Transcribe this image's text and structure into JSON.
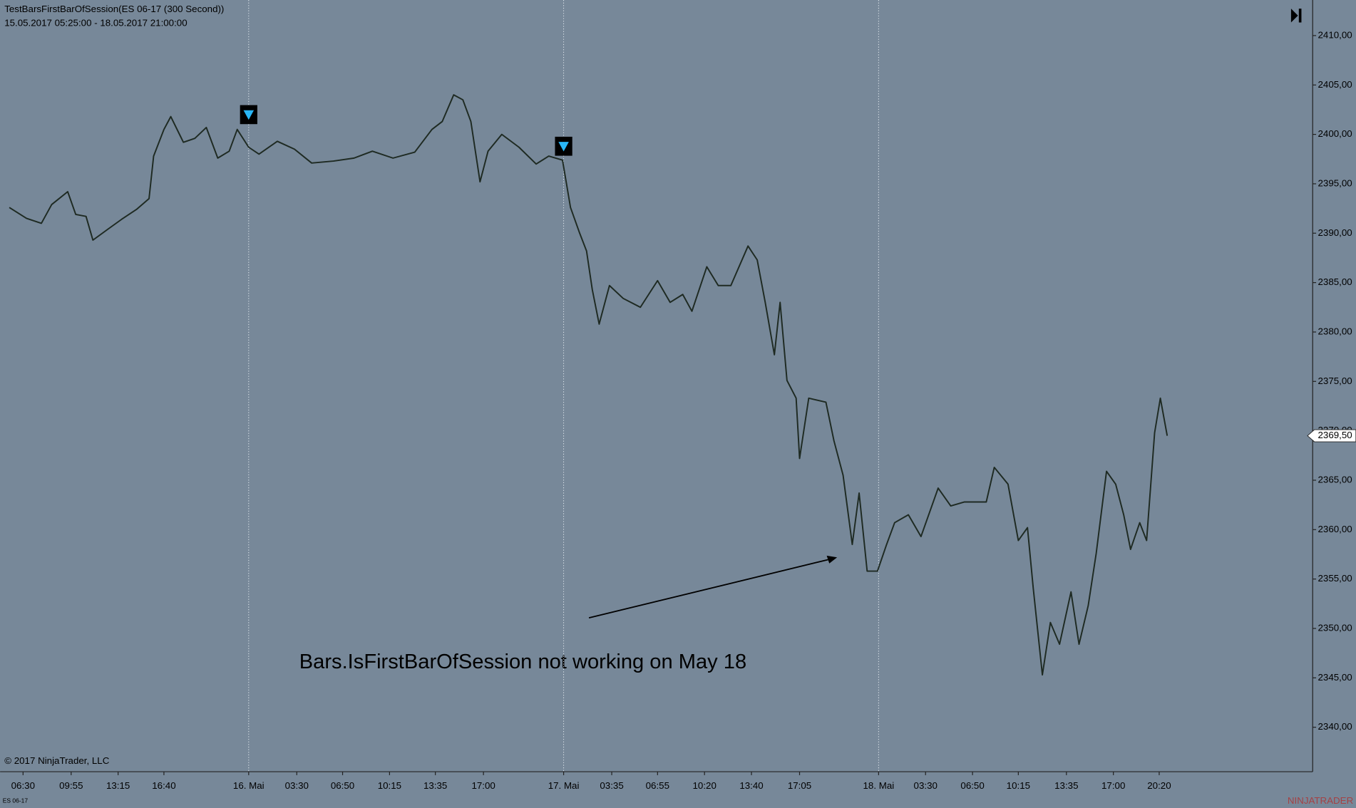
{
  "chart_data": {
    "type": "line",
    "title": "TestBarsFirstBarOfSession(ES 06-17 (300 Second))",
    "subtitle": "15.05.2017 05:25:00 - 18.05.2017 21:00:00",
    "annotation": "Bars.IsFirstBarOfSession not working on May 18",
    "copyright": "© 2017 NinjaTrader, LLC",
    "instrument": "ES 06-17",
    "logo": "NINJATRADER",
    "xlim": [
      0,
      1140
    ],
    "ylim": [
      2335.5,
      2413.6
    ],
    "xticks": [
      {
        "value": 14,
        "label": "06:30"
      },
      {
        "value": 56,
        "label": "09:55"
      },
      {
        "value": 97,
        "label": "13:15"
      },
      {
        "value": 137,
        "label": "16:40"
      },
      {
        "value": 211,
        "label": "16. Mai"
      },
      {
        "value": 253,
        "label": "03:30"
      },
      {
        "value": 293,
        "label": "06:50"
      },
      {
        "value": 334,
        "label": "10:15"
      },
      {
        "value": 374,
        "label": "13:35"
      },
      {
        "value": 416,
        "label": "17:00"
      },
      {
        "value": 486,
        "label": "17. Mai"
      },
      {
        "value": 528,
        "label": "03:35"
      },
      {
        "value": 568,
        "label": "06:55"
      },
      {
        "value": 609,
        "label": "10:20"
      },
      {
        "value": 650,
        "label": "13:40"
      },
      {
        "value": 692,
        "label": "17:05"
      },
      {
        "value": 761,
        "label": "18. Mai"
      },
      {
        "value": 802,
        "label": "03:30"
      },
      {
        "value": 843,
        "label": "06:50"
      },
      {
        "value": 883,
        "label": "10:15"
      },
      {
        "value": 925,
        "label": "13:35"
      },
      {
        "value": 966,
        "label": "17:00"
      },
      {
        "value": 1006,
        "label": "20:20"
      }
    ],
    "yticks": [
      {
        "value": 2340,
        "label": "2340,00"
      },
      {
        "value": 2345,
        "label": "2345,00"
      },
      {
        "value": 2350,
        "label": "2350,00"
      },
      {
        "value": 2355,
        "label": "2355,00"
      },
      {
        "value": 2360,
        "label": "2360,00"
      },
      {
        "value": 2365,
        "label": "2365,00"
      },
      {
        "value": 2370,
        "label": "2370,00"
      },
      {
        "value": 2375,
        "label": "2375,00"
      },
      {
        "value": 2380,
        "label": "2380,00"
      },
      {
        "value": 2385,
        "label": "2385,00"
      },
      {
        "value": 2390,
        "label": "2390,00"
      },
      {
        "value": 2395,
        "label": "2395,00"
      },
      {
        "value": 2400,
        "label": "2400,00"
      },
      {
        "value": 2405,
        "label": "2405,00"
      },
      {
        "value": 2410,
        "label": "2410,00"
      }
    ],
    "session_breaks": [
      211,
      486,
      761
    ],
    "markers": {
      "x": [
        211,
        486
      ],
      "y": [
        2402.0,
        2398.8
      ],
      "color": "#29b6f6"
    },
    "last_price": {
      "value": 2369.5,
      "label": "2369,50"
    },
    "x": [
      2,
      17,
      30,
      39,
      53,
      60,
      69,
      75,
      88,
      100,
      113,
      124,
      128,
      137,
      143,
      154,
      164,
      174,
      184,
      194,
      201,
      211,
      220,
      236,
      251,
      266,
      285,
      303,
      319,
      337,
      356,
      371,
      380,
      390,
      398,
      405,
      413,
      420,
      432,
      447,
      462,
      473,
      485,
      492,
      500,
      506,
      511,
      517,
      526,
      538,
      553,
      568,
      579,
      590,
      598,
      611,
      621,
      632,
      647,
      655,
      662,
      670,
      675,
      681,
      689,
      692,
      700,
      715,
      722,
      730,
      738,
      744,
      751,
      760,
      768,
      775,
      787,
      798,
      813,
      824,
      836,
      855,
      862,
      874,
      883,
      891,
      896,
      904,
      911,
      919,
      929,
      936,
      944,
      951,
      960,
      968,
      975,
      981,
      989,
      995,
      1002,
      1007,
      1013
    ],
    "series": [
      {
        "name": "ES 06-17",
        "color": "#1e2a22",
        "values": [
          2392.6,
          2391.5,
          2391.0,
          2392.9,
          2394.2,
          2391.9,
          2391.7,
          2389.3,
          2390.4,
          2391.4,
          2392.4,
          2393.5,
          2397.8,
          2400.5,
          2401.8,
          2399.2,
          2399.6,
          2400.7,
          2397.6,
          2398.3,
          2400.5,
          2398.7,
          2398.0,
          2399.3,
          2398.5,
          2397.1,
          2397.3,
          2397.6,
          2398.3,
          2397.6,
          2398.2,
          2400.5,
          2401.3,
          2404.0,
          2403.5,
          2401.3,
          2395.2,
          2398.3,
          2400.0,
          2398.7,
          2397.0,
          2397.8,
          2397.4,
          2392.6,
          2390.0,
          2388.2,
          2384.3,
          2380.8,
          2384.7,
          2383.4,
          2382.5,
          2385.2,
          2383.0,
          2383.8,
          2382.1,
          2386.6,
          2384.7,
          2384.7,
          2388.7,
          2387.3,
          2383.0,
          2377.7,
          2383.0,
          2375.1,
          2373.3,
          2367.2,
          2373.3,
          2372.9,
          2369.0,
          2365.5,
          2358.5,
          2363.7,
          2355.8,
          2355.8,
          2358.5,
          2360.7,
          2361.5,
          2359.3,
          2364.2,
          2362.4,
          2362.8,
          2362.8,
          2366.3,
          2364.6,
          2358.9,
          2360.2,
          2354.1,
          2345.3,
          2350.6,
          2348.4,
          2353.7,
          2348.4,
          2352.3,
          2357.6,
          2365.9,
          2364.6,
          2361.5,
          2358.0,
          2360.7,
          2358.9,
          2369.8,
          2373.3,
          2369.5
        ]
      }
    ]
  }
}
